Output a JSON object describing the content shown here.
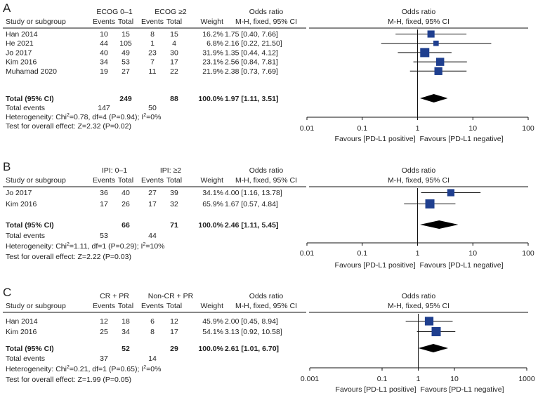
{
  "colors": {
    "marker": "#1f3f8f",
    "line": "#111111",
    "text": "#222222"
  },
  "chart_data": [
    {
      "type": "forest",
      "panel_label": "A",
      "group1_header": "ECOG 0–1",
      "group2_header": "ECOG ≥2",
      "columns": {
        "study": "Study or subgroup",
        "events1": "Events",
        "total1": "Total",
        "events2": "Events",
        "total2": "Total",
        "weight": "Weight",
        "or_title": "Odds ratio",
        "or_method": "M-H, fixed, 95% CI",
        "plot_title": "Odds ratio",
        "plot_method": "M-H, fixed, 95% CI"
      },
      "studies": [
        {
          "name": "Han 2014",
          "e1": "10",
          "t1": "15",
          "e2": "8",
          "t2": "15",
          "weight": "16.2%",
          "or_text": "1.75 [0.40, 7.66]",
          "or": 1.75,
          "lo": 0.4,
          "hi": 7.66,
          "w": 16.2
        },
        {
          "name": "He 2021",
          "e1": "44",
          "t1": "105",
          "e2": "1",
          "t2": "4",
          "weight": "6.8%",
          "or_text": "2.16 [0.22, 21.50]",
          "or": 2.16,
          "lo": 0.22,
          "hi": 21.5,
          "w": 6.8
        },
        {
          "name": "Jo 2017",
          "e1": "40",
          "t1": "49",
          "e2": "23",
          "t2": "30",
          "weight": "31.9%",
          "or_text": "1.35 [0.44, 4.12]",
          "or": 1.35,
          "lo": 0.44,
          "hi": 4.12,
          "w": 31.9
        },
        {
          "name": "Kim 2016",
          "e1": "34",
          "t1": "53",
          "e2": "7",
          "t2": "17",
          "weight": "23.1%",
          "or_text": "2.56 [0.84, 7.81]",
          "or": 2.56,
          "lo": 0.84,
          "hi": 7.81,
          "w": 23.1
        },
        {
          "name": "Muhamad 2020",
          "e1": "19",
          "t1": "27",
          "e2": "11",
          "t2": "22",
          "weight": "21.9%",
          "or_text": "2.38 [0.73, 7.69]",
          "or": 2.38,
          "lo": 0.73,
          "hi": 7.69,
          "w": 21.9
        }
      ],
      "total": {
        "name": "Total (95% CI)",
        "t1": "249",
        "t2": "88",
        "weight": "100.0%",
        "or_text": "1.97 [1.11, 3.51]",
        "or": 1.97,
        "lo": 1.11,
        "hi": 3.51
      },
      "total_events": {
        "label": "Total events",
        "e1": "147",
        "e2": "50"
      },
      "heterogeneity": {
        "prefix": "Heterogeneity: Chi",
        "sup1": "2",
        "mid": "=0.78, df=4 (P=0.94); I",
        "sup2": "2",
        "suffix": "=0%"
      },
      "overall_effect": "Test for overall effect: Z=2.32 (P=0.02)",
      "axis": {
        "scale": "log",
        "min": 0.01,
        "max": 100,
        "ticks": [
          0.01,
          0.1,
          1,
          10,
          100
        ],
        "tick_labels": [
          "0.01",
          "0.1",
          "1",
          "10",
          "100"
        ],
        "left_label": "Favours [PD-L1 positive]",
        "right_label": "Favours [PD-L1 negative]"
      }
    },
    {
      "type": "forest",
      "panel_label": "B",
      "group1_header": "IPI: 0–1",
      "group2_header": "IPI: ≥2",
      "columns": {
        "study": "Study or subgroup",
        "events1": "Events",
        "total1": "Total",
        "events2": "Events",
        "total2": "Total",
        "weight": "Weight",
        "or_title": "Odds ratio",
        "or_method": "M-H, fixed, 95% CI",
        "plot_title": "Odds ratio",
        "plot_method": "M-H, fixed, 95% CI"
      },
      "studies": [
        {
          "name": "Jo 2017",
          "e1": "36",
          "t1": "40",
          "e2": "27",
          "t2": "39",
          "weight": "34.1%",
          "or_text": "4.00 [1.16, 13.78]",
          "or": 4.0,
          "lo": 1.16,
          "hi": 13.78,
          "w": 34.1
        },
        {
          "name": "Kim 2016",
          "e1": "17",
          "t1": "26",
          "e2": "17",
          "t2": "32",
          "weight": "65.9%",
          "or_text": "1.67 [0.57, 4.84]",
          "or": 1.67,
          "lo": 0.57,
          "hi": 4.84,
          "w": 65.9
        }
      ],
      "total": {
        "name": "Total (95% CI)",
        "t1": "66",
        "t2": "71",
        "weight": "100.0%",
        "or_text": "2.46 [1.11, 5.45]",
        "or": 2.46,
        "lo": 1.11,
        "hi": 5.45
      },
      "total_events": {
        "label": "Total events",
        "e1": "53",
        "e2": "44"
      },
      "heterogeneity": {
        "prefix": "Heterogeneity: Chi",
        "sup1": "2",
        "mid": "=1.11, df=1 (P=0.29); I",
        "sup2": "2",
        "suffix": "=10%"
      },
      "overall_effect": "Test for overall effect: Z=2.22 (P=0.03)",
      "axis": {
        "scale": "log",
        "min": 0.01,
        "max": 100,
        "ticks": [
          0.01,
          0.1,
          1,
          10,
          100
        ],
        "tick_labels": [
          "0.01",
          "0.1",
          "1",
          "10",
          "100"
        ],
        "left_label": "Favours [PD-L1 positive]",
        "right_label": "Favours [PD-L1 negative]"
      }
    },
    {
      "type": "forest",
      "panel_label": "C",
      "group1_header": "CR + PR",
      "group2_header": "Non-CR + PR",
      "columns": {
        "study": "Study or subgroup",
        "events1": "Events",
        "total1": "Total",
        "events2": "Events",
        "total2": "Total",
        "weight": "Weight",
        "or_title": "Odds ratio",
        "or_method": "M-H, fixed, 95% CI",
        "plot_title": "Odds ratio",
        "plot_method": "M-H, fixed, 95% CI"
      },
      "studies": [
        {
          "name": "Han 2014",
          "e1": "12",
          "t1": "18",
          "e2": "6",
          "t2": "12",
          "weight": "45.9%",
          "or_text": "2.00 [0.45, 8.94]",
          "or": 2.0,
          "lo": 0.45,
          "hi": 8.94,
          "w": 45.9
        },
        {
          "name": "Kim 2016",
          "e1": "25",
          "t1": "34",
          "e2": "8",
          "t2": "17",
          "weight": "54.1%",
          "or_text": "3.13 [0.92, 10.58]",
          "or": 3.13,
          "lo": 0.92,
          "hi": 10.58,
          "w": 54.1
        }
      ],
      "total": {
        "name": "Total (95% CI)",
        "t1": "52",
        "t2": "29",
        "weight": "100.0%",
        "or_text": "2.61 [1.01, 6.70]",
        "or": 2.61,
        "lo": 1.01,
        "hi": 6.7
      },
      "total_events": {
        "label": "Total events",
        "e1": "37",
        "e2": "14"
      },
      "heterogeneity": {
        "prefix": "Heterogeneity: Chi",
        "sup1": "2",
        "mid": "=0.21, df=1 (P=0.65); I",
        "sup2": "2",
        "suffix": "=0%"
      },
      "overall_effect": "Test for overall effect: Z=1.99 (P=0.05)",
      "axis": {
        "scale": "log",
        "min": 0.001,
        "max": 1000,
        "ticks": [
          0.001,
          0.1,
          1,
          10,
          1000
        ],
        "tick_labels": [
          "0.001",
          "0.1",
          "1",
          "10",
          "1000"
        ],
        "left_label": "Favours [PD-L1 positive]",
        "right_label": "Favours [PD-L1 negative]"
      }
    }
  ]
}
